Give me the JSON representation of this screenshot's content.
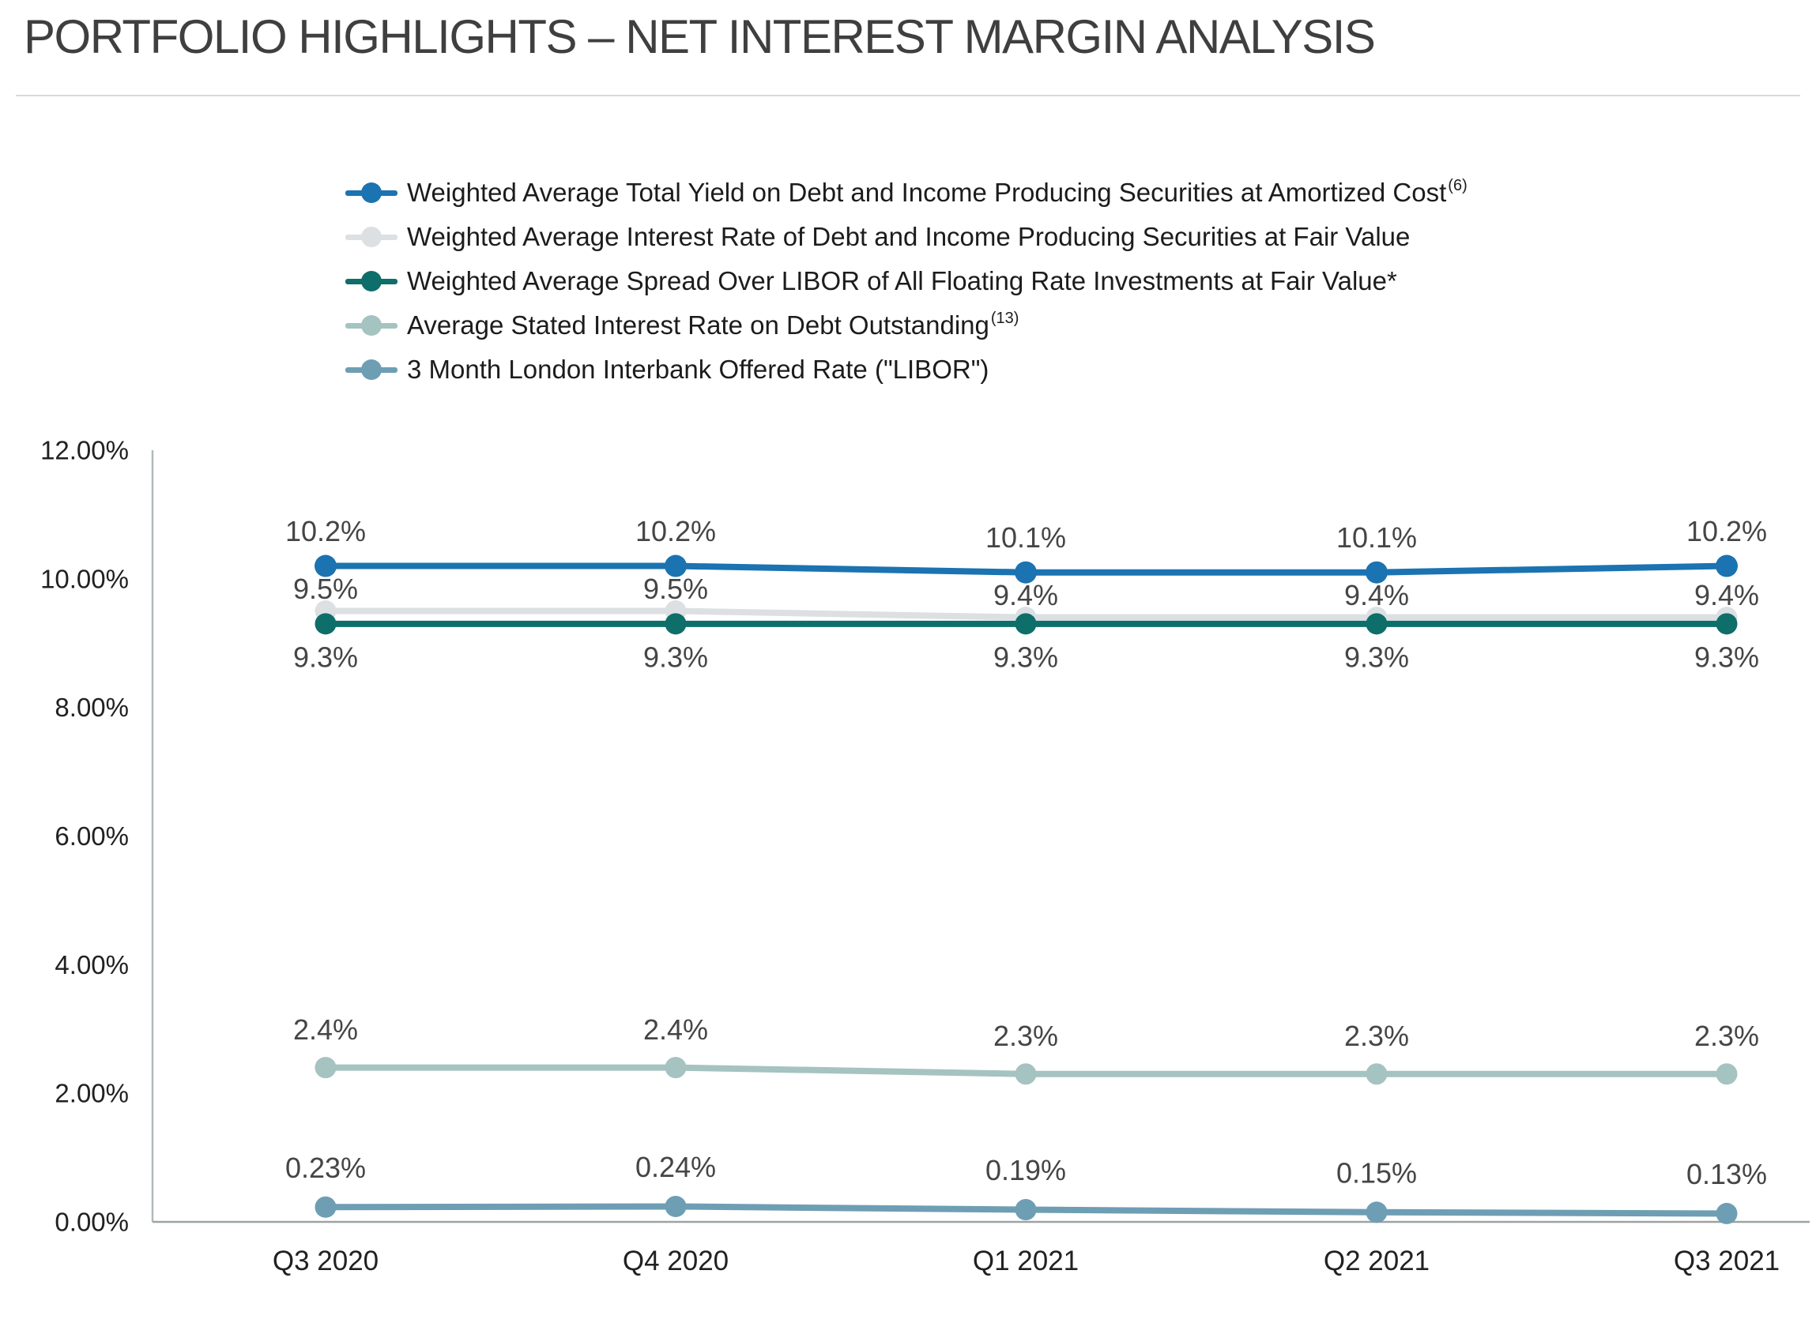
{
  "page": {
    "title": "PORTFOLIO HIGHLIGHTS – NET INTEREST MARGIN ANALYSIS"
  },
  "chart_data": {
    "type": "line",
    "title": "PORTFOLIO HIGHLIGHTS – NET INTEREST MARGIN ANALYSIS",
    "categories": [
      "Q3 2020",
      "Q4 2020",
      "Q1 2021",
      "Q2 2021",
      "Q3 2021"
    ],
    "ylim": [
      0,
      12
    ],
    "yticks": [
      0,
      2,
      4,
      6,
      8,
      10,
      12
    ],
    "ytick_labels": [
      "0.00%",
      "2.00%",
      "4.00%",
      "6.00%",
      "8.00%",
      "10.00%",
      "12.00%"
    ],
    "grid": false,
    "legend_position": "top-center",
    "axis_colors": {
      "y_axis_line": "#B3B9BC",
      "x_axis_line": "#9CA2A6"
    },
    "data_label_color": "#454545",
    "series": [
      {
        "name": "Weighted Average Total Yield on Debt and Income Producing Securities at Amortized Cost",
        "superscript": "(6)",
        "color": "#1B73B1",
        "values": [
          10.2,
          10.2,
          10.1,
          10.1,
          10.2
        ],
        "labels": [
          "10.2%",
          "10.2%",
          "10.1%",
          "10.1%",
          "10.2%"
        ],
        "label_side": "above"
      },
      {
        "name": "Weighted Average Interest Rate of Debt and Income Producing Securities at Fair Value",
        "superscript": "",
        "color": "#DCE0E3",
        "values": [
          9.5,
          9.5,
          9.4,
          9.4,
          9.4
        ],
        "labels": [
          "9.5%",
          "9.5%",
          "9.4%",
          "9.4%",
          "9.4%"
        ],
        "label_side": "above"
      },
      {
        "name": "Weighted Average Spread Over LIBOR of All Floating Rate Investments at Fair Value*",
        "superscript": "",
        "color": "#0E6E69",
        "values": [
          9.3,
          9.3,
          9.3,
          9.3,
          9.3
        ],
        "labels": [
          "9.3%",
          "9.3%",
          "9.3%",
          "9.3%",
          "9.3%"
        ],
        "label_side": "below"
      },
      {
        "name": "Average Stated Interest Rate on Debt Outstanding",
        "superscript": "(13)",
        "color": "#A5C3C0",
        "values": [
          2.4,
          2.4,
          2.3,
          2.3,
          2.3
        ],
        "labels": [
          "2.4%",
          "2.4%",
          "2.3%",
          "2.3%",
          "2.3%"
        ],
        "label_side": "above"
      },
      {
        "name": "3 Month London Interbank Offered Rate (\"LIBOR\")",
        "superscript": "",
        "color": "#6E9EB4",
        "values": [
          0.23,
          0.24,
          0.19,
          0.15,
          0.13
        ],
        "labels": [
          "0.23%",
          "0.24%",
          "0.19%",
          "0.15%",
          "0.13%"
        ],
        "label_side": "above"
      }
    ]
  }
}
